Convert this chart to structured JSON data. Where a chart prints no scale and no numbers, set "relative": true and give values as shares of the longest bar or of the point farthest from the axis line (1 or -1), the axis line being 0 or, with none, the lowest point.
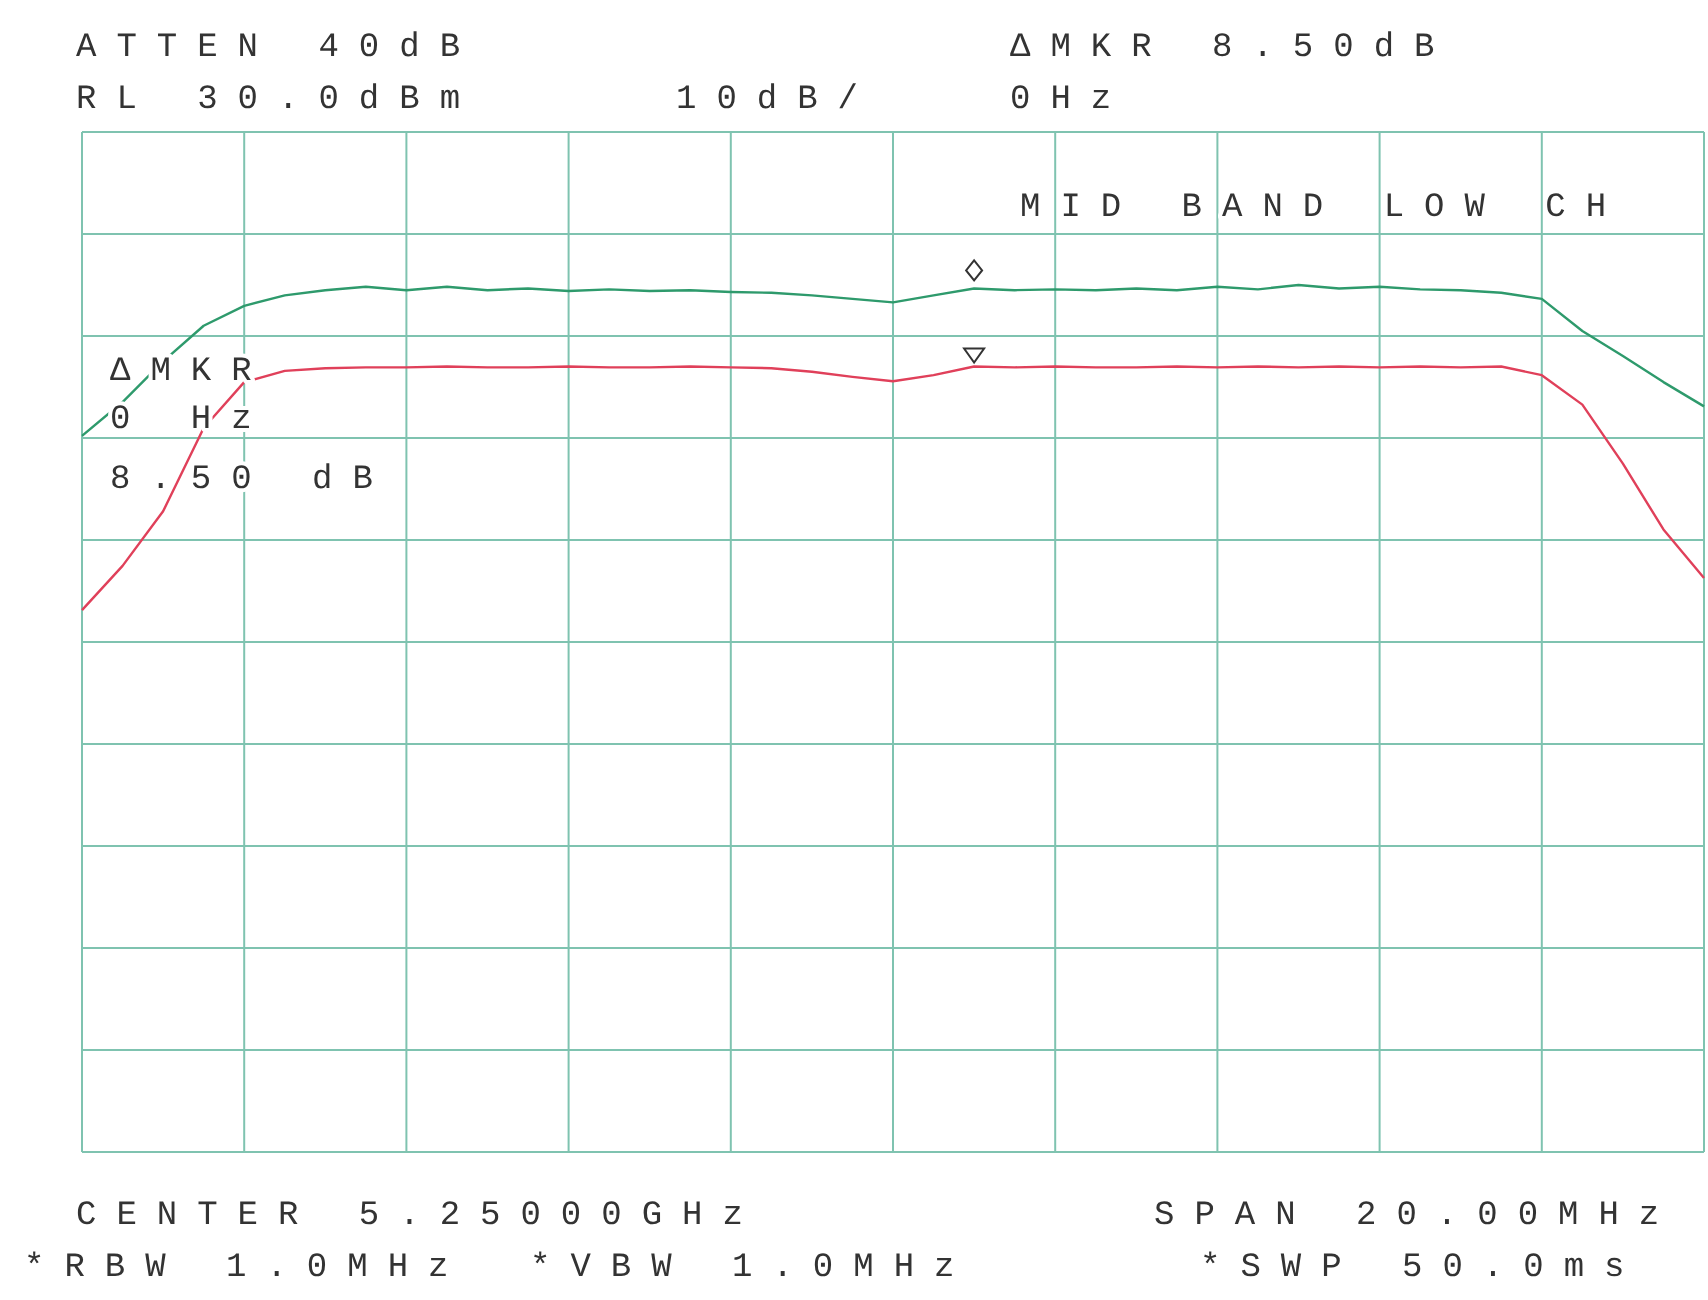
{
  "chart_data": {
    "type": "line",
    "relative": true,
    "grid": true,
    "line_style": "solid",
    "categories": [
      null,
      null,
      null,
      null,
      null,
      null,
      null,
      null,
      null,
      null,
      null,
      null,
      null,
      null,
      null,
      null,
      null,
      null,
      null,
      null,
      null,
      null,
      null,
      null,
      null,
      null,
      null,
      null,
      null,
      null,
      null,
      null,
      null,
      null,
      null,
      null,
      null,
      null,
      null,
      null,
      null
    ],
    "series": [
      {
        "color": "#2e9a6c",
        "values": [
          0.826,
          0.865,
          0.912,
          0.953,
          0.976,
          0.988,
          0.994,
          0.998,
          0.994,
          0.998,
          0.994,
          0.996,
          0.993,
          0.995,
          0.993,
          0.994,
          0.992,
          0.991,
          0.988,
          0.984,
          0.98,
          0.988,
          0.996,
          0.994,
          0.995,
          0.994,
          0.996,
          0.994,
          0.998,
          0.995,
          1,
          0.996,
          0.998,
          0.995,
          0.994,
          0.991,
          0.984,
          0.947,
          0.918,
          0.888,
          0.86
        ]
      },
      {
        "color": "#e0405a",
        "values": [
          0.625,
          0.676,
          0.739,
          0.835,
          0.888,
          0.901,
          0.904,
          0.905,
          0.905,
          0.906,
          0.905,
          0.905,
          0.906,
          0.905,
          0.905,
          0.906,
          0.905,
          0.904,
          0.9,
          0.894,
          0.889,
          0.896,
          0.906,
          0.905,
          0.906,
          0.905,
          0.905,
          0.906,
          0.905,
          0.906,
          0.905,
          0.906,
          0.905,
          0.906,
          0.905,
          0.906,
          0.896,
          0.862,
          0.794,
          0.718,
          0.662
        ]
      }
    ],
    "annotations": [
      "ATTEN 40dB",
      "RL 30.0dBm",
      "10dB/",
      "ΔMKR 8.50dB",
      "0Hz",
      "MID BAND LOW CH",
      "ΔMKR",
      "0 Hz",
      "8.50 dB",
      "CENTER 5.25000GHz",
      "SPAN 20.00MHz",
      "*RBW 1.0MHz",
      "*VBW 1.0MHz",
      "*SWP 50.0ms"
    ]
  }
}
